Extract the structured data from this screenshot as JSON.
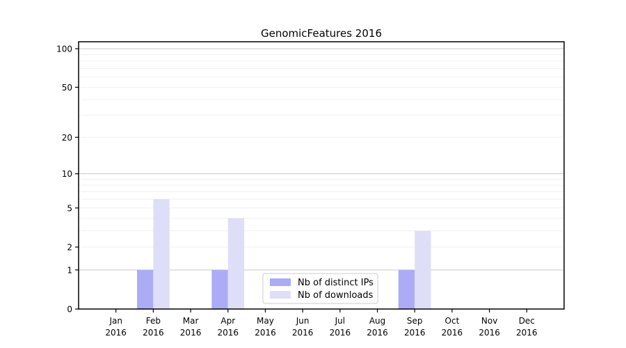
{
  "figure": {
    "background": "#ffffff",
    "frame_color": "#000000",
    "tick_color": "#000000",
    "text_color": "#000000"
  },
  "chart_data": {
    "type": "bar",
    "title": "GenomicFeatures 2016",
    "xlabel": "",
    "ylabel": "",
    "year_line": "2016",
    "categories": [
      "Jan",
      "Feb",
      "Mar",
      "Apr",
      "May",
      "Jun",
      "Jul",
      "Aug",
      "Sep",
      "Oct",
      "Nov",
      "Dec"
    ],
    "series": [
      {
        "name": "Nb of distinct IPs",
        "color": "#abacf5",
        "values": [
          0,
          1,
          0,
          1,
          0,
          0,
          0,
          0,
          1,
          0,
          0,
          0
        ]
      },
      {
        "name": "Nb of downloads",
        "color": "#dedef8",
        "values": [
          0,
          6,
          0,
          4,
          0,
          0,
          0,
          0,
          3,
          0,
          0,
          0
        ]
      }
    ],
    "y_scale": "log10(1+v)",
    "y_ticks": [
      0,
      1,
      2,
      5,
      10,
      20,
      50,
      100
    ],
    "ylim": [
      0,
      113
    ],
    "grid": {
      "visible": true,
      "major_values": [
        1,
        10,
        100
      ],
      "minor_values": [
        2,
        3,
        4,
        5,
        6,
        7,
        8,
        9,
        20,
        30,
        40,
        50,
        60,
        70,
        80,
        90
      ],
      "major_color": "#c9c9c9",
      "minor_color": "#f0f0f0"
    },
    "legend": {
      "position": "inside-bottom-center",
      "background": "#ffffff",
      "border_color": "#cccccc"
    }
  }
}
